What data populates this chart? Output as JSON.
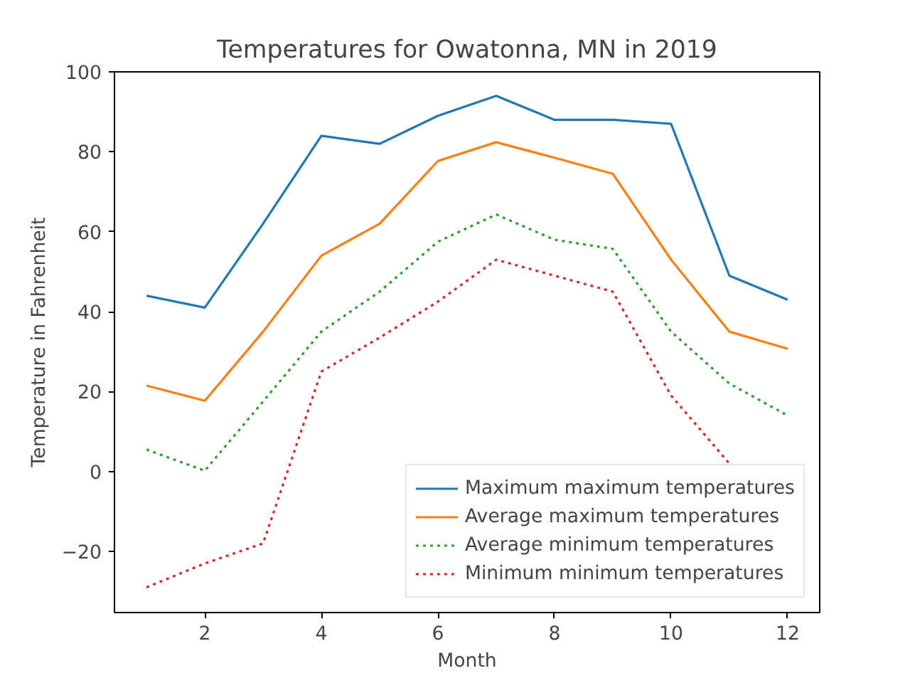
{
  "chart_data": {
    "type": "line",
    "title": "Temperatures for Owatonna, MN in 2019",
    "xlabel": "Month",
    "ylabel": "Temperature in Fahrenheit",
    "x": [
      1,
      2,
      3,
      4,
      5,
      6,
      7,
      8,
      9,
      10,
      11,
      12
    ],
    "series": [
      {
        "name": "Maximum maximum temperatures",
        "color": "#1f77b4",
        "line_style": "solid",
        "values": [
          44,
          41,
          62,
          84,
          82,
          89,
          94,
          88,
          88,
          87,
          49,
          43
        ]
      },
      {
        "name": "Average maximum temperatures",
        "color": "#ff7f0e",
        "line_style": "solid",
        "values": [
          21.5,
          17.7,
          35,
          54,
          62,
          77.7,
          82.4,
          78.5,
          74.5,
          53,
          35,
          30.7
        ]
      },
      {
        "name": "Average minimum temperatures",
        "color": "#2ca02c",
        "line_style": "dotted",
        "values": [
          5.5,
          0.2,
          17.5,
          35,
          45,
          57.5,
          64.3,
          58,
          55.7,
          35,
          22,
          14
        ]
      },
      {
        "name": "Minimum minimum temperatures",
        "color": "#d62728",
        "line_style": "dotted",
        "values": [
          -29,
          -23,
          -18,
          25,
          33.5,
          42.5,
          53,
          49,
          45,
          19,
          2,
          null
        ]
      }
    ],
    "xlim": [
      0.45,
      12.55
    ],
    "ylim": [
      -35.3,
      100
    ],
    "xticks": [
      2,
      4,
      6,
      8,
      10,
      12
    ],
    "yticks": [
      -20,
      0,
      20,
      40,
      60,
      80,
      100
    ],
    "grid": false,
    "legend": "bottom right"
  }
}
